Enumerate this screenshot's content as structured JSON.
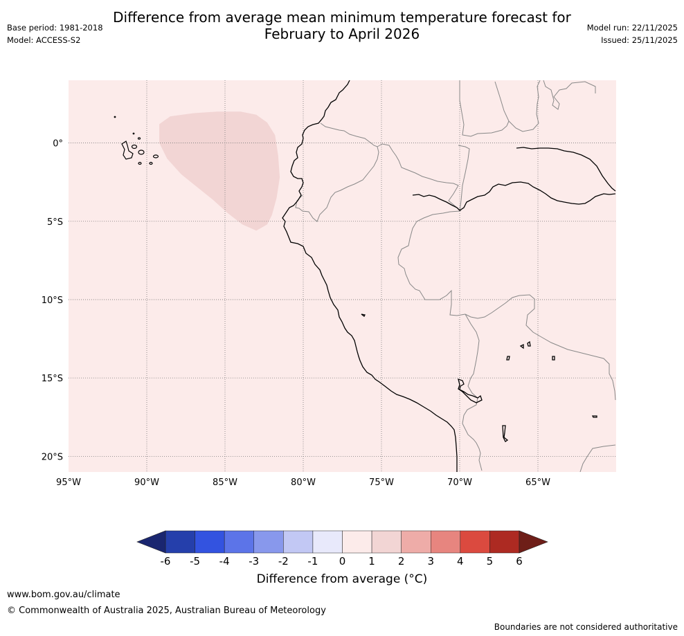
{
  "header": {
    "title_line1": "Difference from average mean minimum temperature forecast for",
    "title_line2": "February to April 2026",
    "base_period": "Base period: 1981-2018",
    "model": "Model: ACCESS-S2",
    "model_run": "Model run: 22/11/2025",
    "issued": "Issued: 25/11/2025"
  },
  "map": {
    "extent": {
      "lon_min": -95,
      "lon_max": -60,
      "lat_min": -21,
      "lat_max": 4
    },
    "lat_ticks": [
      {
        "value": 0,
        "label": "0°"
      },
      {
        "value": -5,
        "label": "5°S"
      },
      {
        "value": -10,
        "label": "10°S"
      },
      {
        "value": -15,
        "label": "15°S"
      },
      {
        "value": -20,
        "label": "20°S"
      }
    ],
    "lon_ticks": [
      {
        "value": -95,
        "label": "95°W"
      },
      {
        "value": -90,
        "label": "90°W"
      },
      {
        "value": -85,
        "label": "85°W"
      },
      {
        "value": -80,
        "label": "80°W"
      },
      {
        "value": -75,
        "label": "75°W"
      },
      {
        "value": -70,
        "label": "70°W"
      },
      {
        "value": -65,
        "label": "65°W"
      }
    ],
    "background_class": "0 to 1",
    "background_color": "#fcebea",
    "anomaly_region": {
      "class": "1 to 2",
      "color": "#f2d5d4",
      "polygon": [
        [
          -89.2,
          1.2
        ],
        [
          -88.5,
          1.7
        ],
        [
          -87,
          1.9
        ],
        [
          -85.5,
          2.0
        ],
        [
          -84,
          2.0
        ],
        [
          -83,
          1.8
        ],
        [
          -82.3,
          1.3
        ],
        [
          -81.8,
          0.5
        ],
        [
          -81.6,
          -0.8
        ],
        [
          -81.5,
          -2.2
        ],
        [
          -81.7,
          -3.5
        ],
        [
          -82.0,
          -4.6
        ],
        [
          -82.3,
          -5.2
        ],
        [
          -83.0,
          -5.6
        ],
        [
          -83.9,
          -5.2
        ],
        [
          -84.8,
          -4.5
        ],
        [
          -85.8,
          -3.6
        ],
        [
          -86.8,
          -2.8
        ],
        [
          -87.8,
          -2.0
        ],
        [
          -88.7,
          -1.0
        ],
        [
          -89.2,
          0.0
        ]
      ]
    }
  },
  "colorbar": {
    "xlabel": "Difference from average (°C)",
    "tick_labels": [
      "-6",
      "-5",
      "-4",
      "-3",
      "-2",
      "-1",
      "0",
      "1",
      "2",
      "3",
      "4",
      "5",
      "6"
    ],
    "under_color": "#1a2670",
    "over_color": "#6e1e18",
    "colors": [
      "#253fab",
      "#3353e0",
      "#5c74e8",
      "#8898ec",
      "#c2c8f4",
      "#e8e9fb",
      "#fcebea",
      "#f2d5d4",
      "#eeaca8",
      "#e7857f",
      "#db4a3f",
      "#ad2a22"
    ]
  },
  "footer": {
    "website": "www.bom.gov.au/climate",
    "copyright": "© Commonwealth of Australia 2025, Australian Bureau of Meteorology",
    "disclaimer": "Boundaries are not considered authoritative"
  }
}
